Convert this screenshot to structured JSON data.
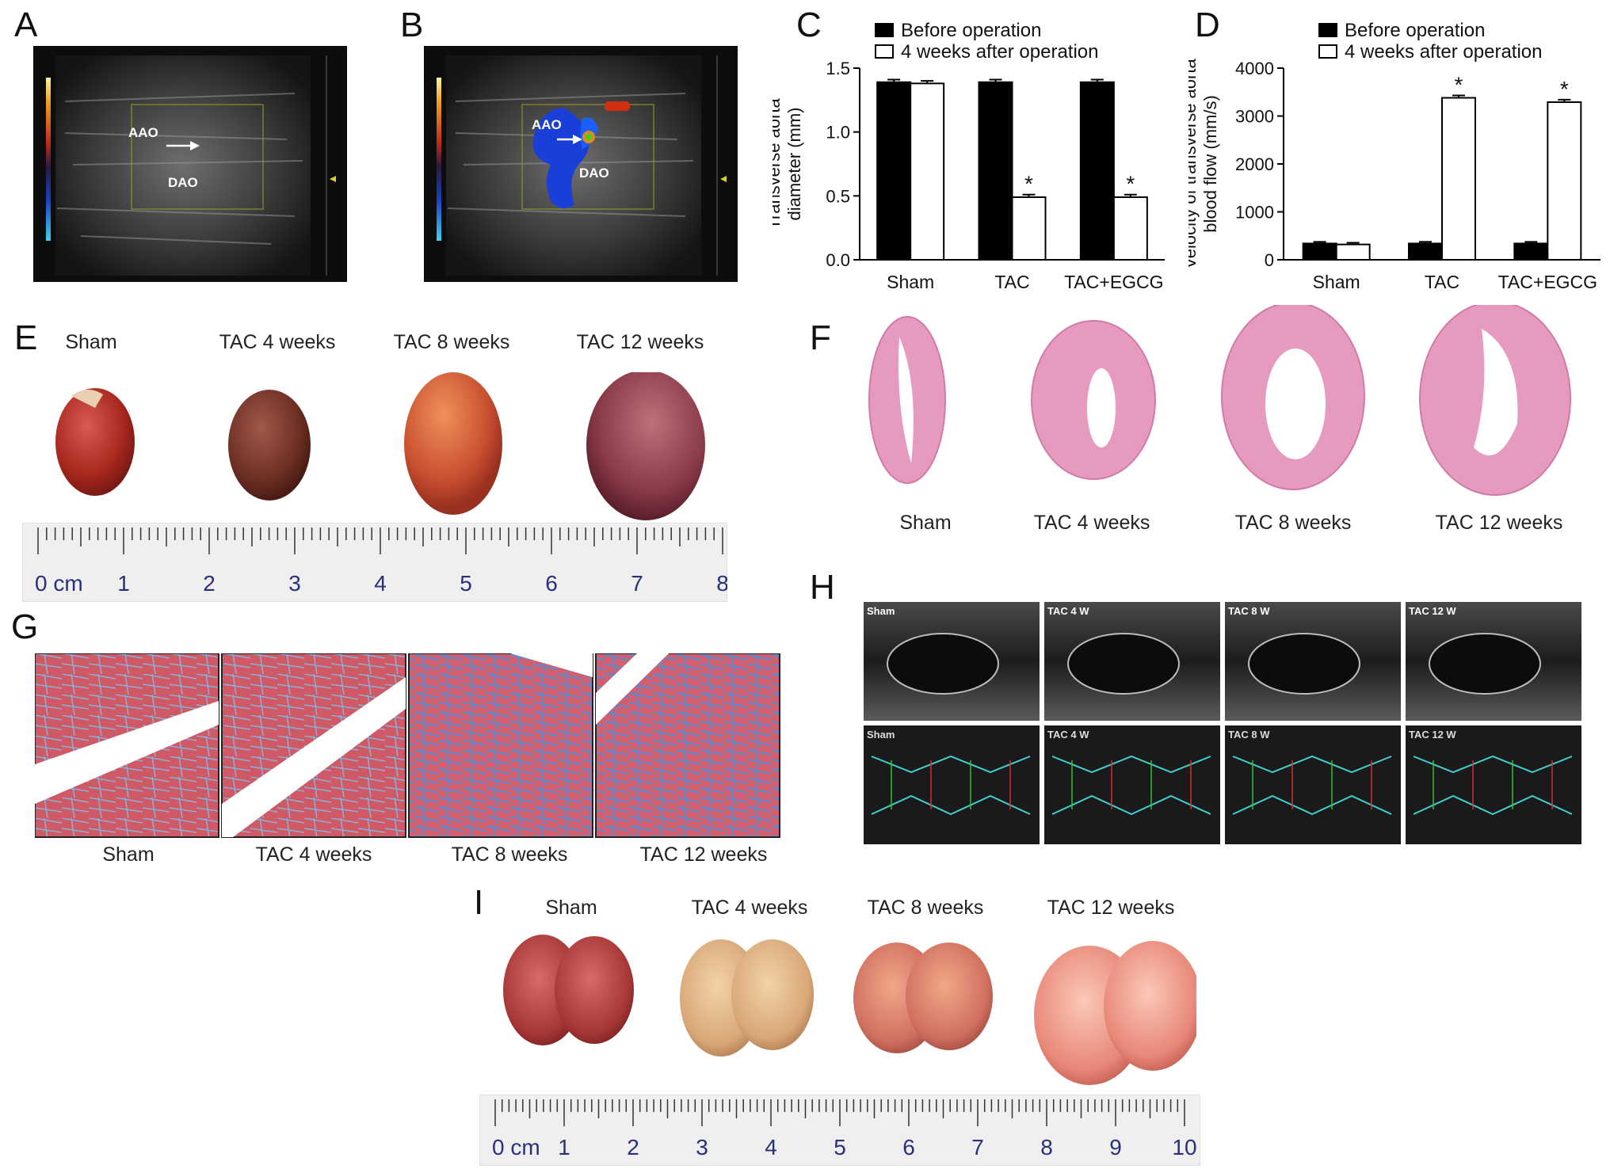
{
  "panels": {
    "A": {
      "letter": "A",
      "labels": {
        "aao": "AAO",
        "dao": "DAO"
      }
    },
    "B": {
      "letter": "B",
      "labels": {
        "aao": "AAO",
        "dao": "DAO"
      }
    },
    "C": {
      "letter": "C"
    },
    "D": {
      "letter": "D"
    },
    "E": {
      "letter": "E",
      "captions": [
        "Sham",
        "TAC 4 weeks",
        "TAC 8 weeks",
        "TAC 12 weeks"
      ],
      "ruler_ticks": [
        "0 cm",
        "1",
        "2",
        "3",
        "4",
        "5",
        "6",
        "7",
        "8"
      ]
    },
    "F": {
      "letter": "F",
      "captions": [
        "Sham",
        "TAC 4 weeks",
        "TAC 8 weeks",
        "TAC 12 weeks"
      ]
    },
    "G": {
      "letter": "G",
      "captions": [
        "Sham",
        "TAC 4 weeks",
        "TAC 8 weeks",
        "TAC 12 weeks"
      ]
    },
    "H": {
      "letter": "H",
      "frame_tags": [
        "Sham",
        "TAC 4 W",
        "TAC 8 W",
        "TAC 12 W"
      ]
    },
    "I": {
      "letter": "I",
      "captions": [
        "Sham",
        "TAC 4 weeks",
        "TAC 8 weeks",
        "TAC 12 weeks"
      ],
      "ruler_ticks": [
        "0 cm",
        "1",
        "2",
        "3",
        "4",
        "5",
        "6",
        "7",
        "8",
        "9",
        "10"
      ]
    }
  },
  "colors": {
    "before": "#000000",
    "after": "#ffffff",
    "lv_heart": "#b23a3a",
    "he_pink": "#e79ac0",
    "lung": "#d9877e"
  },
  "chart_data": [
    {
      "type": "bar",
      "panel": "C",
      "categories": [
        "Sham",
        "TAC",
        "TAC+EGCG"
      ],
      "series": [
        {
          "name": "Before operation",
          "values": [
            1.39,
            1.39,
            1.39
          ],
          "errors": [
            0.02,
            0.02,
            0.02
          ]
        },
        {
          "name": "4 weeks after operation",
          "values": [
            1.38,
            0.49,
            0.49
          ],
          "errors": [
            0.02,
            0.02,
            0.02
          ]
        }
      ],
      "significance": [
        "",
        "*",
        "*"
      ],
      "ylabel": "Transverse aorta diameter (mm)",
      "ylim": [
        0,
        1.5
      ],
      "yticks": [
        "0.0",
        "0.5",
        "1.0",
        "1.5"
      ],
      "legend": "top"
    },
    {
      "type": "bar",
      "panel": "D",
      "categories": [
        "Sham",
        "TAC",
        "TAC+EGCG"
      ],
      "series": [
        {
          "name": "Before operation",
          "values": [
            340,
            340,
            340
          ],
          "errors": [
            35,
            35,
            35
          ]
        },
        {
          "name": "4 weeks after operation",
          "values": [
            320,
            3380,
            3290
          ],
          "errors": [
            35,
            50,
            50
          ]
        }
      ],
      "significance": [
        "",
        "*",
        "*"
      ],
      "ylabel": "Velocity of transverse aorta blood flow (mm/s)",
      "ylim": [
        0,
        4000
      ],
      "yticks": [
        "0",
        "1000",
        "2000",
        "3000",
        "4000"
      ],
      "legend": "top"
    }
  ]
}
